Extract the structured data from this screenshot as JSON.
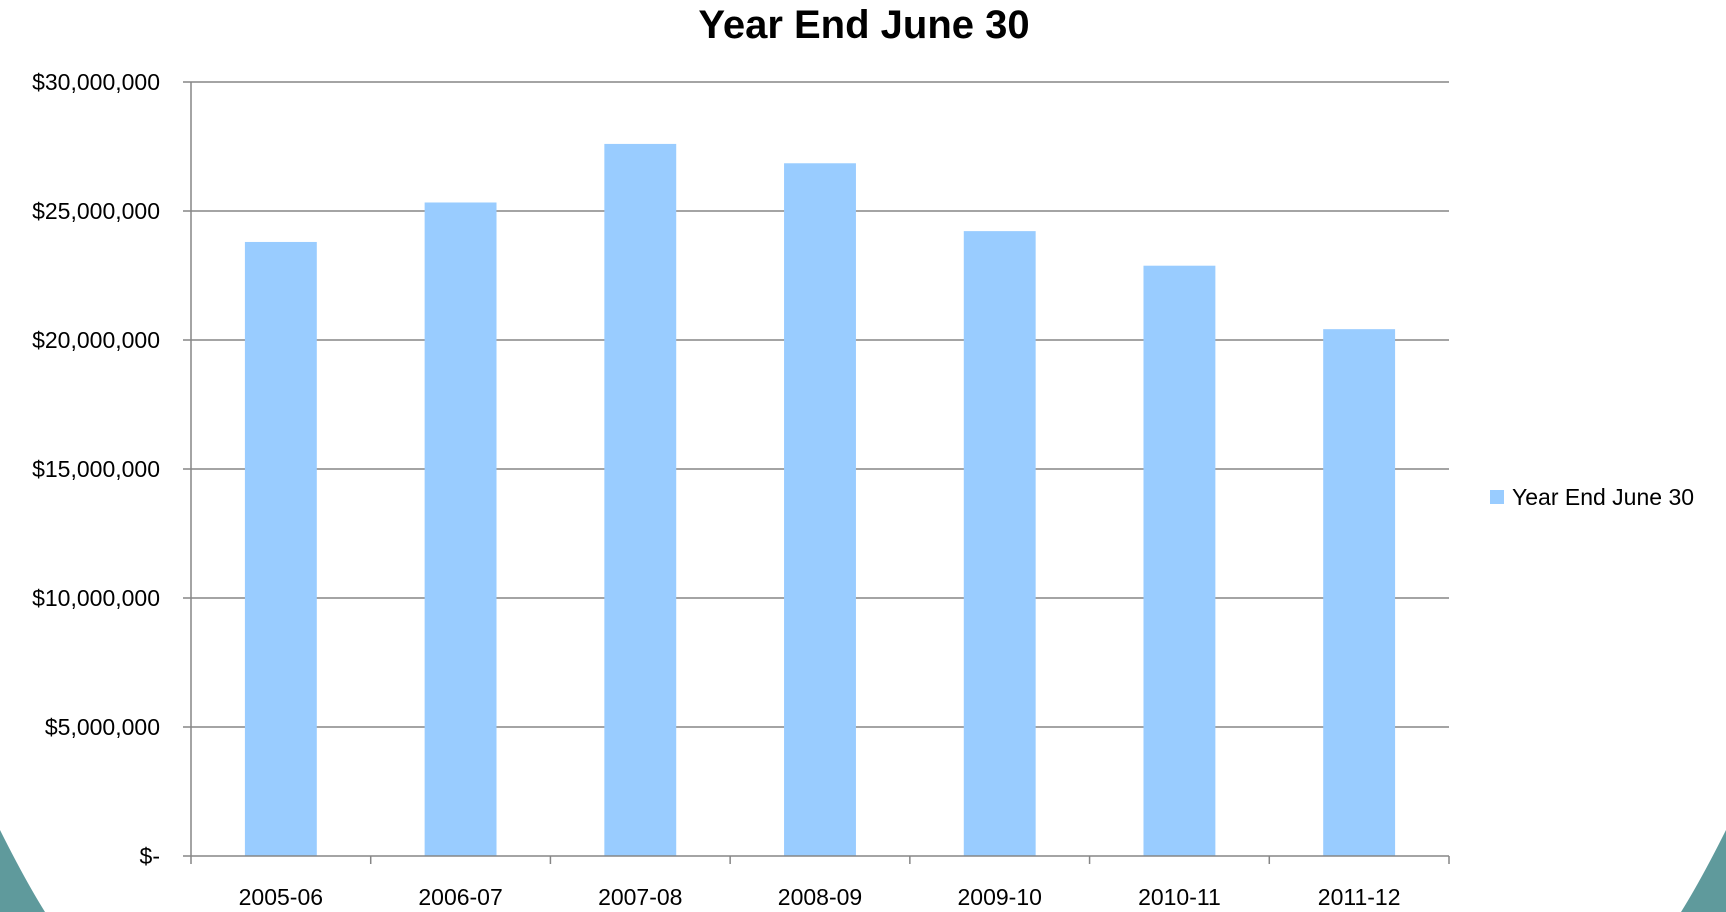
{
  "colors": {
    "bar": "#99ccff",
    "gridline": "#868686",
    "axis": "#868686",
    "frame": "#5f9a9c"
  },
  "chart_data": {
    "type": "bar",
    "title": "Year End June 30",
    "xlabel": "",
    "ylabel": "",
    "categories": [
      "2005-06",
      "2006-07",
      "2007-08",
      "2008-09",
      "2009-10",
      "2010-11",
      "2011-12"
    ],
    "series": [
      {
        "name": "Year End June 30",
        "values": [
          23800000,
          25330000,
          27600000,
          26850000,
          24220000,
          22880000,
          20420000
        ]
      }
    ],
    "ylim": [
      0,
      30000000
    ],
    "yticks": [
      0,
      5000000,
      10000000,
      15000000,
      20000000,
      25000000,
      30000000
    ],
    "ytick_labels": [
      "$-",
      "$5,000,000",
      "$10,000,000",
      "$15,000,000",
      "$20,000,000",
      "$25,000,000",
      "$30,000,000"
    ],
    "grid": true,
    "legend_position": "right"
  }
}
